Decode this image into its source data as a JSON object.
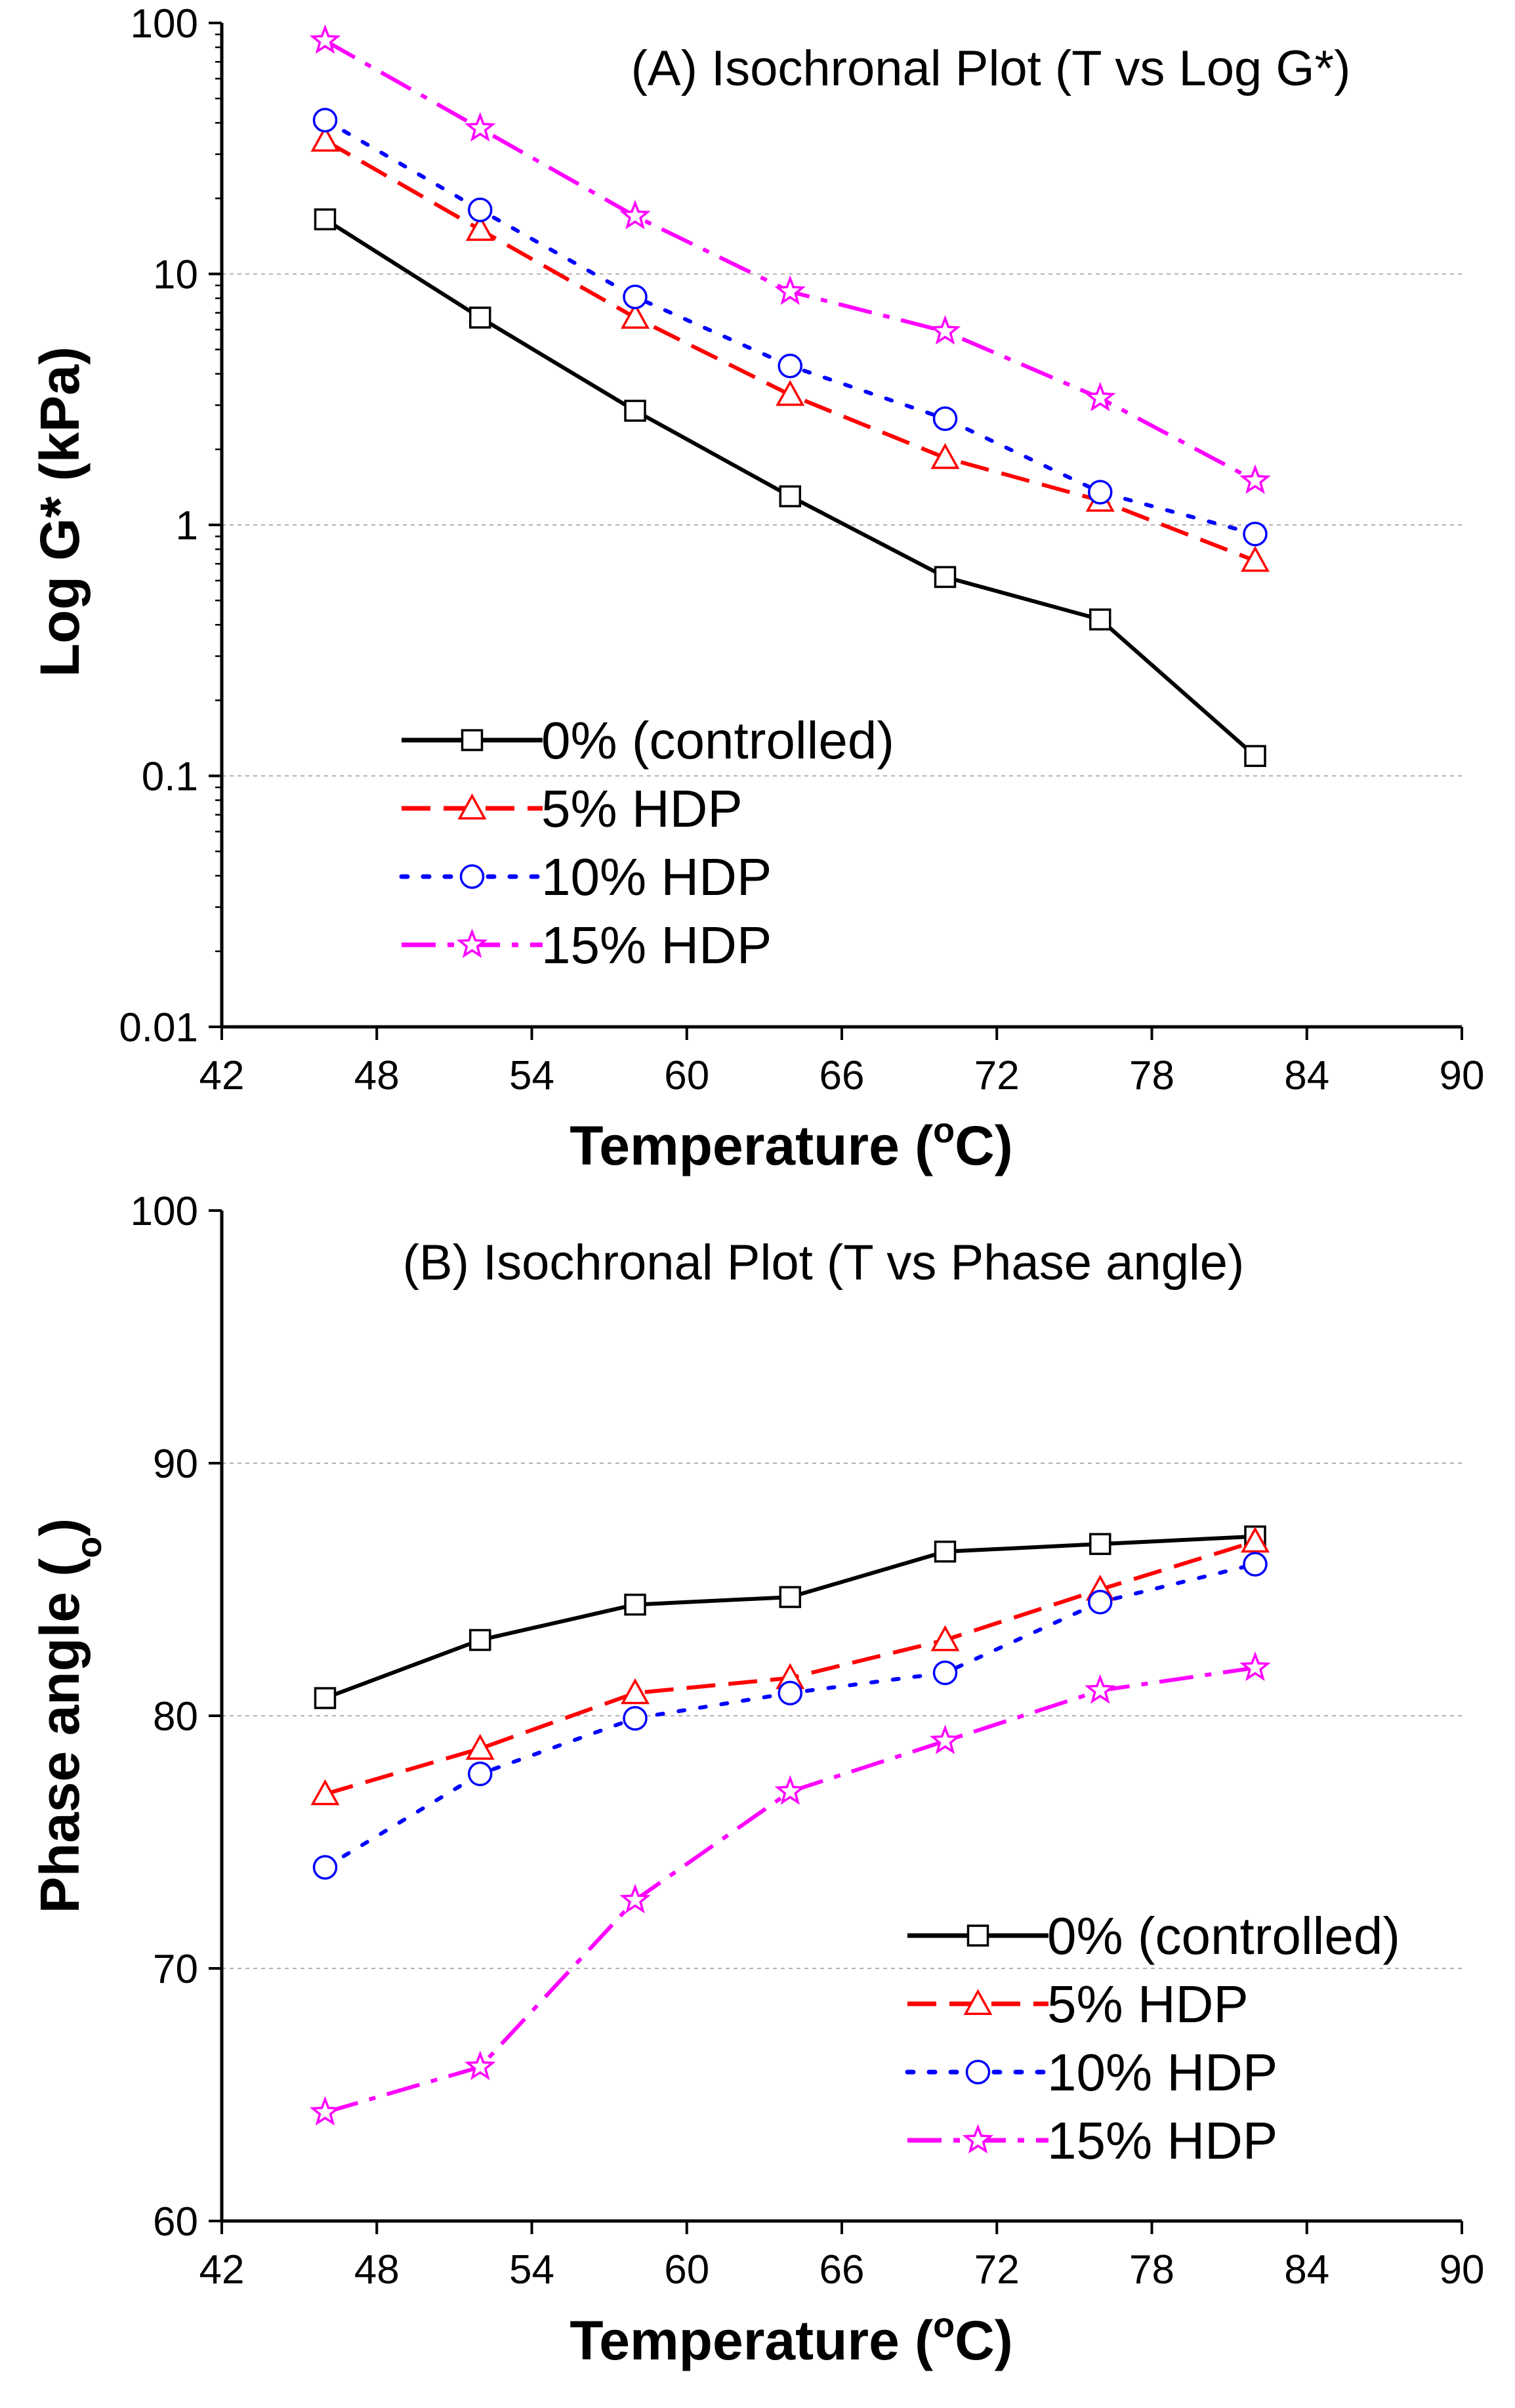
{
  "chart_data": [
    {
      "type": "line",
      "title": "(A) Isochronal Plot (T vs Log G*)",
      "xlabel": "Temperature",
      "xlabel_unit": "(°C)",
      "xlabel_unit_parts": [
        "(",
        "o",
        "C)"
      ],
      "ylabel": "Log G* (kPa)",
      "yscale": "log",
      "xlim": [
        42,
        90
      ],
      "ylim": [
        0.01,
        100
      ],
      "x_ticks": [
        "42",
        "48",
        "54",
        "60",
        "66",
        "72",
        "78",
        "84",
        "90"
      ],
      "y_ticks": [
        "0.01",
        "0.1",
        "1",
        "10",
        "100"
      ],
      "x": [
        46,
        52,
        58,
        64,
        70,
        76,
        82
      ],
      "series": [
        {
          "name": "0% (controlled)",
          "values": [
            16.5,
            6.7,
            2.85,
            1.3,
            0.62,
            0.42,
            0.12
          ]
        },
        {
          "name": "5% HDP",
          "values": [
            34,
            15,
            6.7,
            3.3,
            1.85,
            1.25,
            0.72
          ]
        },
        {
          "name": "10% HDP",
          "values": [
            41,
            18,
            8.1,
            4.3,
            2.65,
            1.35,
            0.92
          ]
        },
        {
          "name": "15% HDP",
          "values": [
            85,
            38,
            17,
            8.5,
            5.9,
            3.2,
            1.5
          ]
        }
      ],
      "legend_position": "lower-left"
    },
    {
      "type": "line",
      "title": "(B) Isochronal Plot (T vs Phase angle)",
      "xlabel": "Temperature",
      "xlabel_unit": "(°C)",
      "xlabel_unit_parts": [
        "(",
        "o",
        "C)"
      ],
      "ylabel": "Phase angle (°)",
      "ylabel_parts": [
        "Phase angle (",
        "o",
        ")"
      ],
      "xlim": [
        42,
        90
      ],
      "ylim": [
        60,
        100
      ],
      "x_ticks": [
        "42",
        "48",
        "54",
        "60",
        "66",
        "72",
        "78",
        "84",
        "90"
      ],
      "y_ticks": [
        "60",
        "70",
        "80",
        "90",
        "100"
      ],
      "x": [
        46,
        52,
        58,
        64,
        70,
        76,
        82
      ],
      "series": [
        {
          "name": "0% (controlled)",
          "values": [
            80.7,
            83.0,
            84.4,
            84.7,
            86.5,
            86.8,
            87.1
          ]
        },
        {
          "name": "5% HDP",
          "values": [
            76.9,
            78.7,
            80.9,
            81.5,
            83.0,
            85.0,
            86.9
          ]
        },
        {
          "name": "10% HDP",
          "values": [
            74.0,
            77.7,
            79.9,
            80.9,
            81.7,
            84.5,
            86.0
          ]
        },
        {
          "name": "15% HDP",
          "values": [
            64.3,
            66.1,
            72.7,
            77.0,
            79.0,
            81.0,
            81.9
          ]
        }
      ],
      "legend_position": "lower-right"
    }
  ],
  "styles": {
    "series_colors": [
      "#000000",
      "#ff0000",
      "#0000ff",
      "#ff00ff"
    ],
    "markers": [
      "square",
      "triangle",
      "circle",
      "star"
    ],
    "line_styles": [
      "solid",
      "dashed",
      "dotted",
      "dashdot"
    ],
    "grid_color": "#b0b0b0"
  }
}
